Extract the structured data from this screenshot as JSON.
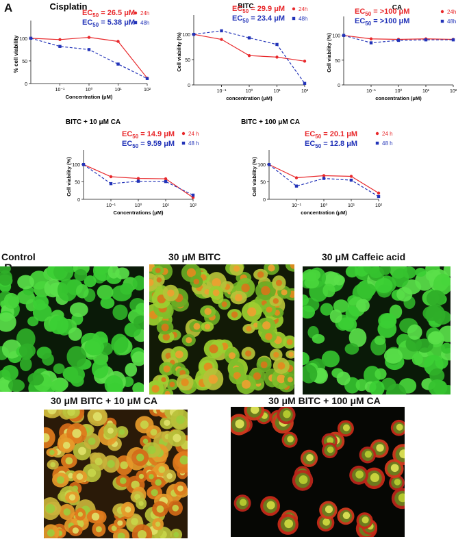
{
  "panel_labels": {
    "a": "A",
    "b": "B"
  },
  "colors": {
    "h24": "#e8282b",
    "h48": "#2233b8",
    "cell_green": "#3fd23a",
    "cell_orange": "#e07a1c",
    "cell_red": "#d1301c"
  },
  "chart_data": [
    {
      "type": "line",
      "title": "Cisplatin",
      "xlabel": "Concentration (μM)",
      "ylabel": "% cell viability",
      "x_scale": "log",
      "xticks": [
        "10⁻¹",
        "10⁰",
        "10¹",
        "10²"
      ],
      "yticks": [
        "0",
        "50",
        "100"
      ],
      "ylim": [
        0,
        130
      ],
      "ec50": {
        "h24": "EC50 = 26.5 μM",
        "h48": "EC50 = 5.38 μM"
      },
      "x": [
        0.01,
        0.1,
        1,
        10,
        100
      ],
      "series": [
        {
          "name": "24h",
          "color": "#e8282b",
          "values": [
            100,
            97,
            102,
            93,
            12
          ]
        },
        {
          "name": "48h",
          "color": "#2233b8",
          "values": [
            100,
            82,
            75,
            43,
            11
          ]
        }
      ]
    },
    {
      "type": "line",
      "title": "BITC",
      "xlabel": "concentration (μM)",
      "ylabel": "Cell viability (%)",
      "x_scale": "log",
      "xticks": [
        "10⁻¹",
        "10⁰",
        "10¹",
        "10²"
      ],
      "yticks": [
        "0",
        "50",
        "100"
      ],
      "ylim": [
        0,
        130
      ],
      "ec50": {
        "h24": "EC50 = 29.9 μM",
        "h48": "EC50 = 23.4 μM"
      },
      "x": [
        0.01,
        0.1,
        1,
        10,
        100
      ],
      "series": [
        {
          "name": "24h",
          "color": "#e8282b",
          "values": [
            100,
            90,
            58,
            55,
            47
          ]
        },
        {
          "name": "48h",
          "color": "#2233b8",
          "values": [
            100,
            107,
            93,
            80,
            3
          ]
        }
      ]
    },
    {
      "type": "line",
      "title": "CA",
      "xlabel": "concentration (μM)",
      "ylabel": "Cell viability (%)",
      "x_scale": "log",
      "xticks": [
        "10⁻¹",
        "10⁰",
        "10¹",
        "10²"
      ],
      "yticks": [
        "0",
        "50",
        "100"
      ],
      "ylim": [
        0,
        130
      ],
      "ec50": {
        "h24": "EC50 = >100 μM",
        "h48": "EC50 = >100 μM"
      },
      "x": [
        0.01,
        0.1,
        1,
        10,
        100
      ],
      "series": [
        {
          "name": "24h",
          "color": "#e8282b",
          "values": [
            100,
            93,
            92,
            93,
            92
          ]
        },
        {
          "name": "48h",
          "color": "#2233b8",
          "values": [
            100,
            85,
            90,
            91,
            91
          ]
        }
      ]
    },
    {
      "type": "line",
      "title": "BITC + 10 μM CA",
      "xlabel": "Concentrations (μM)",
      "ylabel": "Cell viability (%)",
      "x_scale": "log",
      "xticks": [
        "10⁻¹",
        "10⁰",
        "10¹",
        "10²"
      ],
      "yticks": [
        "0",
        "50",
        "100"
      ],
      "ylim": [
        0,
        130
      ],
      "ec50": {
        "h24": "EC50 = 14.9 μM",
        "h48": "EC50 = 9.59 μM"
      },
      "x": [
        0.01,
        0.1,
        1,
        10,
        100
      ],
      "series": [
        {
          "name": "24 h",
          "color": "#e8282b",
          "values": [
            100,
            65,
            60,
            59,
            5
          ]
        },
        {
          "name": "48 h",
          "color": "#2233b8",
          "values": [
            100,
            45,
            52,
            51,
            12
          ]
        }
      ]
    },
    {
      "type": "line",
      "title": "BITC + 100 μM CA",
      "xlabel": "concentration (μM)",
      "ylabel": "Cell viability (%)",
      "x_scale": "log",
      "xticks": [
        "10⁻¹",
        "10⁰",
        "10¹",
        "10²"
      ],
      "yticks": [
        "0",
        "50",
        "100"
      ],
      "ylim": [
        0,
        130
      ],
      "ec50": {
        "h24": "EC50 = 20.1 μM",
        "h48": "EC50 = 12.8 μM"
      },
      "x": [
        0.01,
        0.1,
        1,
        10,
        100
      ],
      "series": [
        {
          "name": "24 h",
          "color": "#e8282b",
          "values": [
            100,
            62,
            68,
            66,
            18
          ]
        },
        {
          "name": "48 h",
          "color": "#2233b8",
          "values": [
            100,
            38,
            60,
            55,
            8
          ]
        }
      ]
    }
  ],
  "micrographs": [
    {
      "label": "Control",
      "palette": "green"
    },
    {
      "label": "30 μM BITC",
      "palette": "green-orange"
    },
    {
      "label": "30 μM Caffeic acid",
      "palette": "green"
    },
    {
      "label": "30 μM BITC + 10 μM CA",
      "palette": "orange"
    },
    {
      "label": "30 μM BITC + 100 μM CA",
      "palette": "red-ring"
    }
  ]
}
